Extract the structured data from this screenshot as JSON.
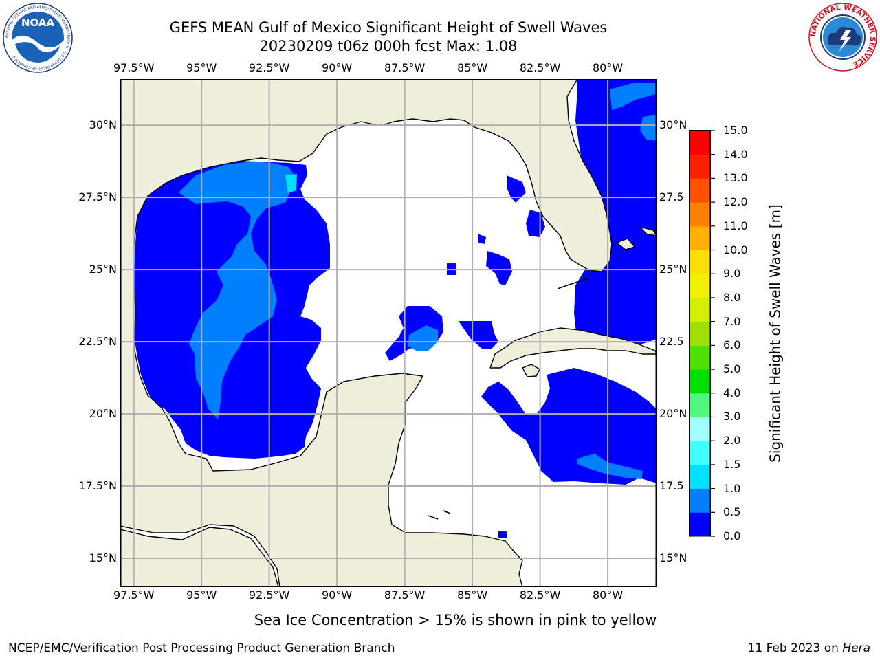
{
  "header": {
    "title_line1": "GEFS MEAN Gulf of Mexico Significant Height of Swell Waves",
    "title_line2": "20230209 t06z 000h fcst   Max: 1.08"
  },
  "map": {
    "lon_ticks": [
      "97.5°W",
      "95°W",
      "92.5°W",
      "90°W",
      "87.5°W",
      "85°W",
      "82.5°W",
      "80°W"
    ],
    "lon_values": [
      -97.5,
      -95,
      -92.5,
      -90,
      -87.5,
      -85,
      -82.5,
      -80
    ],
    "lat_ticks_left": [
      "30°N",
      "27.5°N",
      "25°N",
      "22.5°N",
      "20°N",
      "17.5°N",
      "15°N"
    ],
    "lat_ticks_right": [
      "30°N",
      "27.5",
      "25°N",
      "22.5",
      "20°N",
      "17.5",
      "15°N"
    ],
    "lat_values": [
      30,
      27.5,
      25,
      22.5,
      20,
      17.5,
      15
    ],
    "extent": {
      "lon_min": -98,
      "lon_max": -78.2,
      "lat_min": 14,
      "lat_max": 31.6
    },
    "colors": {
      "land": "#efeedb",
      "ocean_none": "#ffffff",
      "grid": "#b0b0b0"
    }
  },
  "colorbar": {
    "label": "Significant Height of Swell Waves [m]",
    "tick_labels": [
      "0.0",
      "0.5",
      "1.0",
      "1.5",
      "2.0",
      "3.0",
      "4.0",
      "5.0",
      "6.0",
      "7.0",
      "8.0",
      "9.0",
      "10.0",
      "11.0",
      "12.0",
      "13.0",
      "14.0",
      "15.0"
    ],
    "colors": [
      "#0000ff",
      "#0080ff",
      "#00e0ff",
      "#40ffff",
      "#a0ffff",
      "#50f880",
      "#00e000",
      "#50e000",
      "#a0e000",
      "#d0f000",
      "#f0f000",
      "#ffe000",
      "#ffb000",
      "#ff8000",
      "#ff5000",
      "#ff2000",
      "#ff0000"
    ]
  },
  "note": "Sea Ice Concentration > 15% is shown in pink to yellow",
  "footer": {
    "left": "NCEP/EMC/Verification Post Processing Product Generation Branch",
    "right_prefix": "11 Feb 2023 on ",
    "right_machine": "Hera"
  },
  "logos": {
    "noaa_text": "NOAA",
    "noaa_ring_text": "NATIONAL OCEANIC AND ATMOSPHERIC ADMINISTRATION · U.S. DEPARTMENT OF COMMERCE",
    "nws_ring_text": "NATIONAL WEATHER SERVICE"
  }
}
